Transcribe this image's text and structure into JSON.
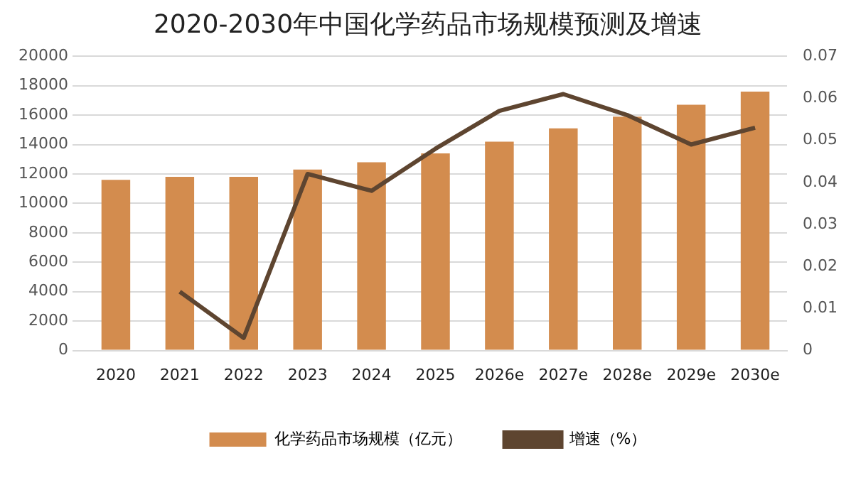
{
  "chart_data": {
    "type": "bar",
    "title": "2020-2030年中国化学药品市场规模预测及增速",
    "categories": [
      "2020",
      "2021",
      "2022",
      "2023",
      "2024",
      "2025",
      "2026e",
      "2027e",
      "2028e",
      "2029e",
      "2030e"
    ],
    "series": [
      {
        "name": "化学药品市场规模（亿元）",
        "color": "#d38c4e",
        "values": [
          11600,
          11800,
          11800,
          12300,
          12800,
          13400,
          14200,
          15100,
          15900,
          16700,
          17600
        ]
      },
      {
        "name": "增速（%）",
        "type": "line",
        "axis": "y2",
        "color": "#5e4530",
        "values": [
          null,
          0.014,
          0.003,
          0.042,
          0.038,
          0.048,
          0.057,
          0.061,
          0.056,
          0.049,
          0.053
        ]
      }
    ],
    "ylim": [
      0,
      20000
    ],
    "yticks": [
      0,
      2000,
      4000,
      6000,
      8000,
      10000,
      12000,
      14000,
      16000,
      18000,
      20000
    ],
    "y2lim": [
      0,
      0.07
    ],
    "y2ticks": [
      0,
      0.01,
      0.02,
      0.03,
      0.04,
      0.05,
      0.06,
      0.07
    ],
    "grid": "y",
    "legend": "bottom",
    "marker": "none",
    "line_style": "solid"
  }
}
